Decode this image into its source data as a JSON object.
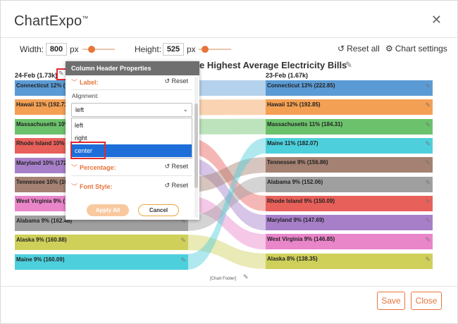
{
  "app": {
    "title": "ChartExpo",
    "trademark": "™",
    "close_glyph": "✕"
  },
  "toolbar": {
    "width_label": "Width:",
    "width_value": "800",
    "width_unit": "px",
    "height_label": "Height:",
    "height_value": "525",
    "height_unit": "px",
    "reset_all_label": "Reset all",
    "chart_settings_label": "Chart settings",
    "icons": {
      "reset": "undo-icon",
      "settings": "sliders-icon"
    }
  },
  "chart": {
    "title_visible": "e Highest Average Electricity Bills",
    "left_header": "24-Feb (1.73k)",
    "right_header": "23-Feb (1.67k)",
    "footer": "[Chart Footer]"
  },
  "chart_data": {
    "type": "sankey",
    "title": "e Highest Average Electricity Bills",
    "columns": [
      "24-Feb (1.73k)",
      "23-Feb (1.67k)"
    ],
    "left_nodes": [
      {
        "label": "Connecticut 12% (",
        "visible_label": "Connecticut 12% (",
        "color": "#5b9bd5"
      },
      {
        "label": "Hawaii 11% (192.71",
        "color": "#f4a054"
      },
      {
        "label": "Massachusetts 10%",
        "color": "#6cc26c"
      },
      {
        "label": "Rhode Island 10% (",
        "color": "#e8605a"
      },
      {
        "label": "Maryland 10% (172",
        "color": "#a77fc9"
      },
      {
        "label": "Tennessee 10% (16",
        "color": "#a48172"
      },
      {
        "label": "West Virginia 9% (",
        "color": "#e985c9"
      },
      {
        "label": "Alabama 9% (162.48)",
        "color": "#9f9f9f"
      },
      {
        "label": "Alaska 9% (160.88)",
        "color": "#cfd05a"
      },
      {
        "label": "Maine 9% (160.09)",
        "color": "#4dcfdc"
      }
    ],
    "right_nodes": [
      {
        "label": "Connecticut 13% (222.85)",
        "color": "#5b9bd5"
      },
      {
        "label": "Hawaii 12% (192.85)",
        "color": "#f4a054"
      },
      {
        "label": "Massachusetts 11% (184.31)",
        "color": "#6cc26c"
      },
      {
        "label": "Maine 11% (182.07)",
        "color": "#4dcfdc"
      },
      {
        "label": "Tennessee 9% (156.86)",
        "color": "#a48172"
      },
      {
        "label": "Alabama 9% (152.06)",
        "color": "#9f9f9f"
      },
      {
        "label": "Rhode Island 9% (150.09)",
        "color": "#e8605a"
      },
      {
        "label": "Maryland 9% (147.69)",
        "color": "#a77fc9"
      },
      {
        "label": "West Virginia 9% (146.85)",
        "color": "#e985c9"
      },
      {
        "label": "Alaska 8% (138.35)",
        "color": "#cfd05a"
      }
    ]
  },
  "panel": {
    "title": "Column Header Properties",
    "label_section": "Label:",
    "reset": "Reset",
    "alignment_label": "Alignment:",
    "alignment_value": "left",
    "options": [
      "left",
      "right",
      "center"
    ],
    "selected_option": "center",
    "percentage_section": "Percentage:",
    "font_style_section": "Font Style:",
    "apply_label": "Apply All",
    "cancel_label": "Cancel"
  },
  "footer": {
    "save_label": "Save",
    "close_label": "Close"
  }
}
